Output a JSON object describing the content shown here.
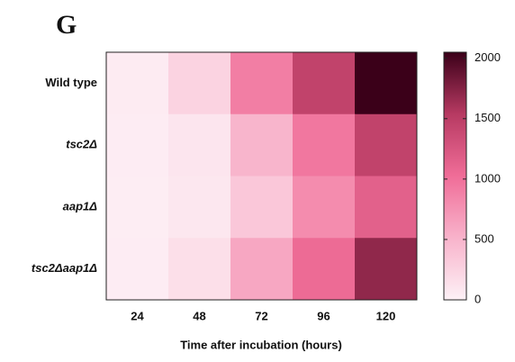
{
  "chart_data": {
    "type": "heatmap",
    "panel_label": "G",
    "x_label": "Time after incubation (hours)",
    "x": [
      24,
      48,
      72,
      96,
      120
    ],
    "rows": [
      "Wild type",
      "tsc2Δ",
      "aap1Δ",
      "tsc2Δaap1Δ"
    ],
    "values": [
      [
        50,
        250,
        900,
        1450,
        2050
      ],
      [
        40,
        100,
        500,
        950,
        1450
      ],
      [
        30,
        80,
        350,
        800,
        1150
      ],
      [
        40,
        150,
        600,
        1050,
        1700
      ]
    ],
    "zlim": [
      0,
      2050
    ],
    "zticks": [
      0,
      500,
      1000,
      1500,
      2000
    ],
    "colormap": [
      "#fdf1f6",
      "#f8b3cb",
      "#f06d98",
      "#b73a62",
      "#3b0019"
    ]
  }
}
